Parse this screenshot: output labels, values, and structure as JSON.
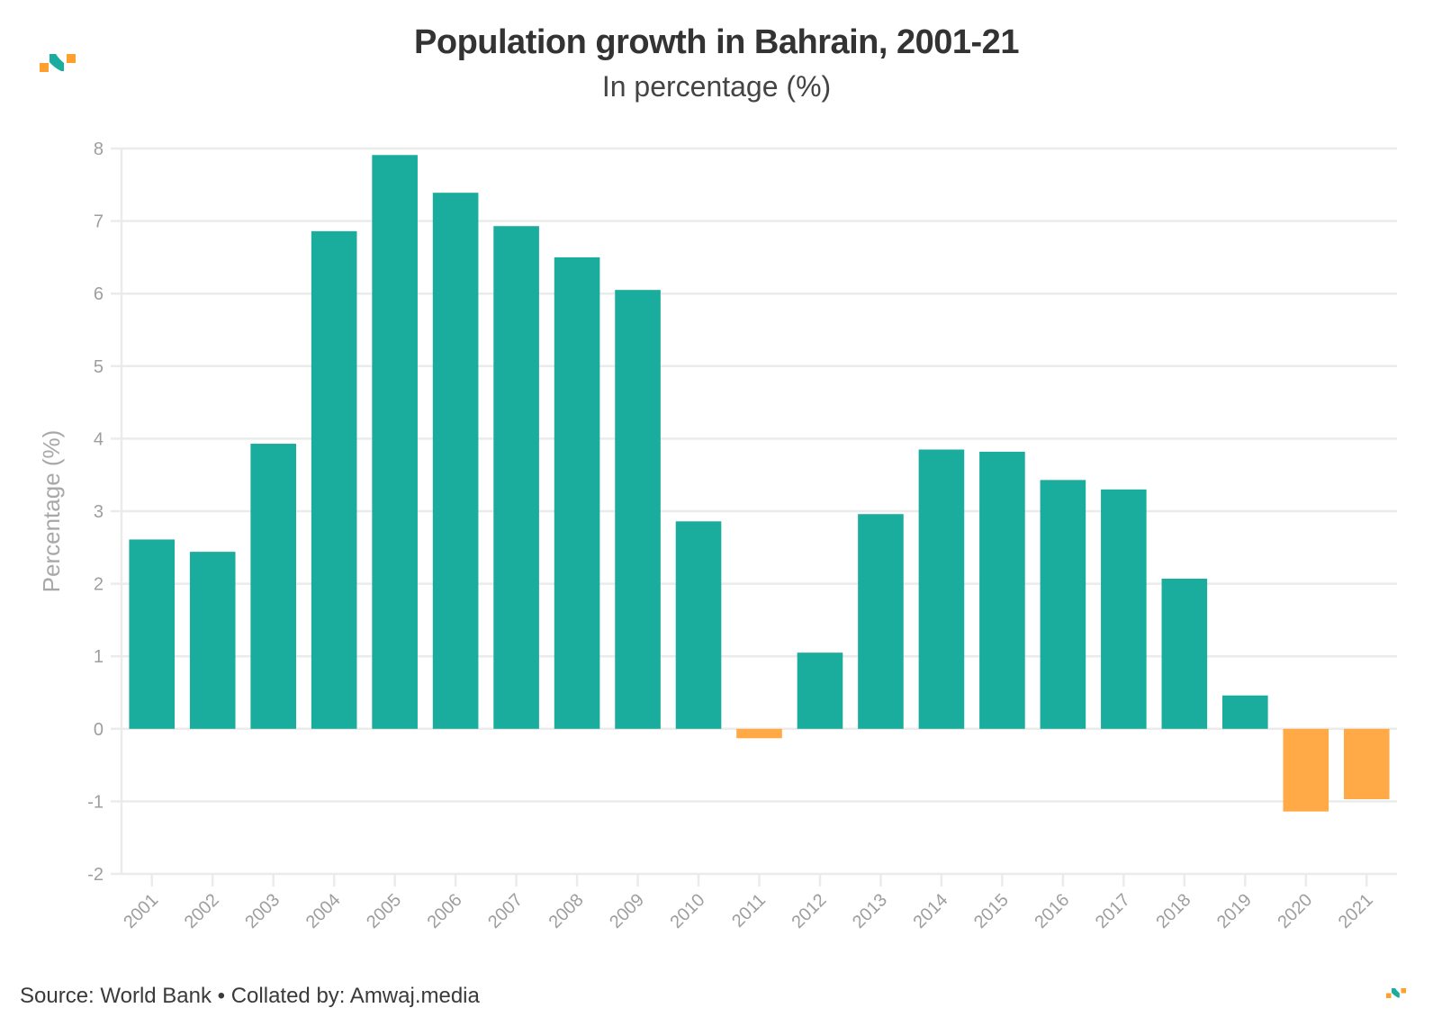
{
  "header": {
    "title": "Population growth in Bahrain, 2001-21",
    "subtitle": "In percentage (%)",
    "logo": "amwaj-logo-icon"
  },
  "footer": {
    "text": "Source: World Bank • Collated by: Amwaj.media",
    "logo": "amwaj-logo-icon"
  },
  "colors": {
    "positive": "#1aad9d",
    "negative": "#ffaa47",
    "logo_teal": "#1aad9d",
    "logo_orange": "#ff9f2e"
  },
  "chart_data": {
    "type": "bar",
    "title": "Population growth in Bahrain, 2001-21",
    "subtitle": "In percentage (%)",
    "xlabel": "",
    "ylabel": "Percentage (%)",
    "ylim": [
      -2,
      8
    ],
    "yticks": [
      -2,
      -1,
      0,
      1,
      2,
      3,
      4,
      5,
      6,
      7,
      8
    ],
    "grid": true,
    "legend": "none",
    "categories": [
      "2001",
      "2002",
      "2003",
      "2004",
      "2005",
      "2006",
      "2007",
      "2008",
      "2009",
      "2010",
      "2011",
      "2012",
      "2013",
      "2014",
      "2015",
      "2016",
      "2017",
      "2018",
      "2019",
      "2020",
      "2021"
    ],
    "values": [
      2.61,
      2.44,
      3.93,
      6.86,
      7.91,
      7.39,
      6.93,
      6.5,
      6.05,
      2.86,
      -0.13,
      1.05,
      2.96,
      3.85,
      3.82,
      3.43,
      3.3,
      2.07,
      0.46,
      -1.14,
      -0.97
    ]
  }
}
